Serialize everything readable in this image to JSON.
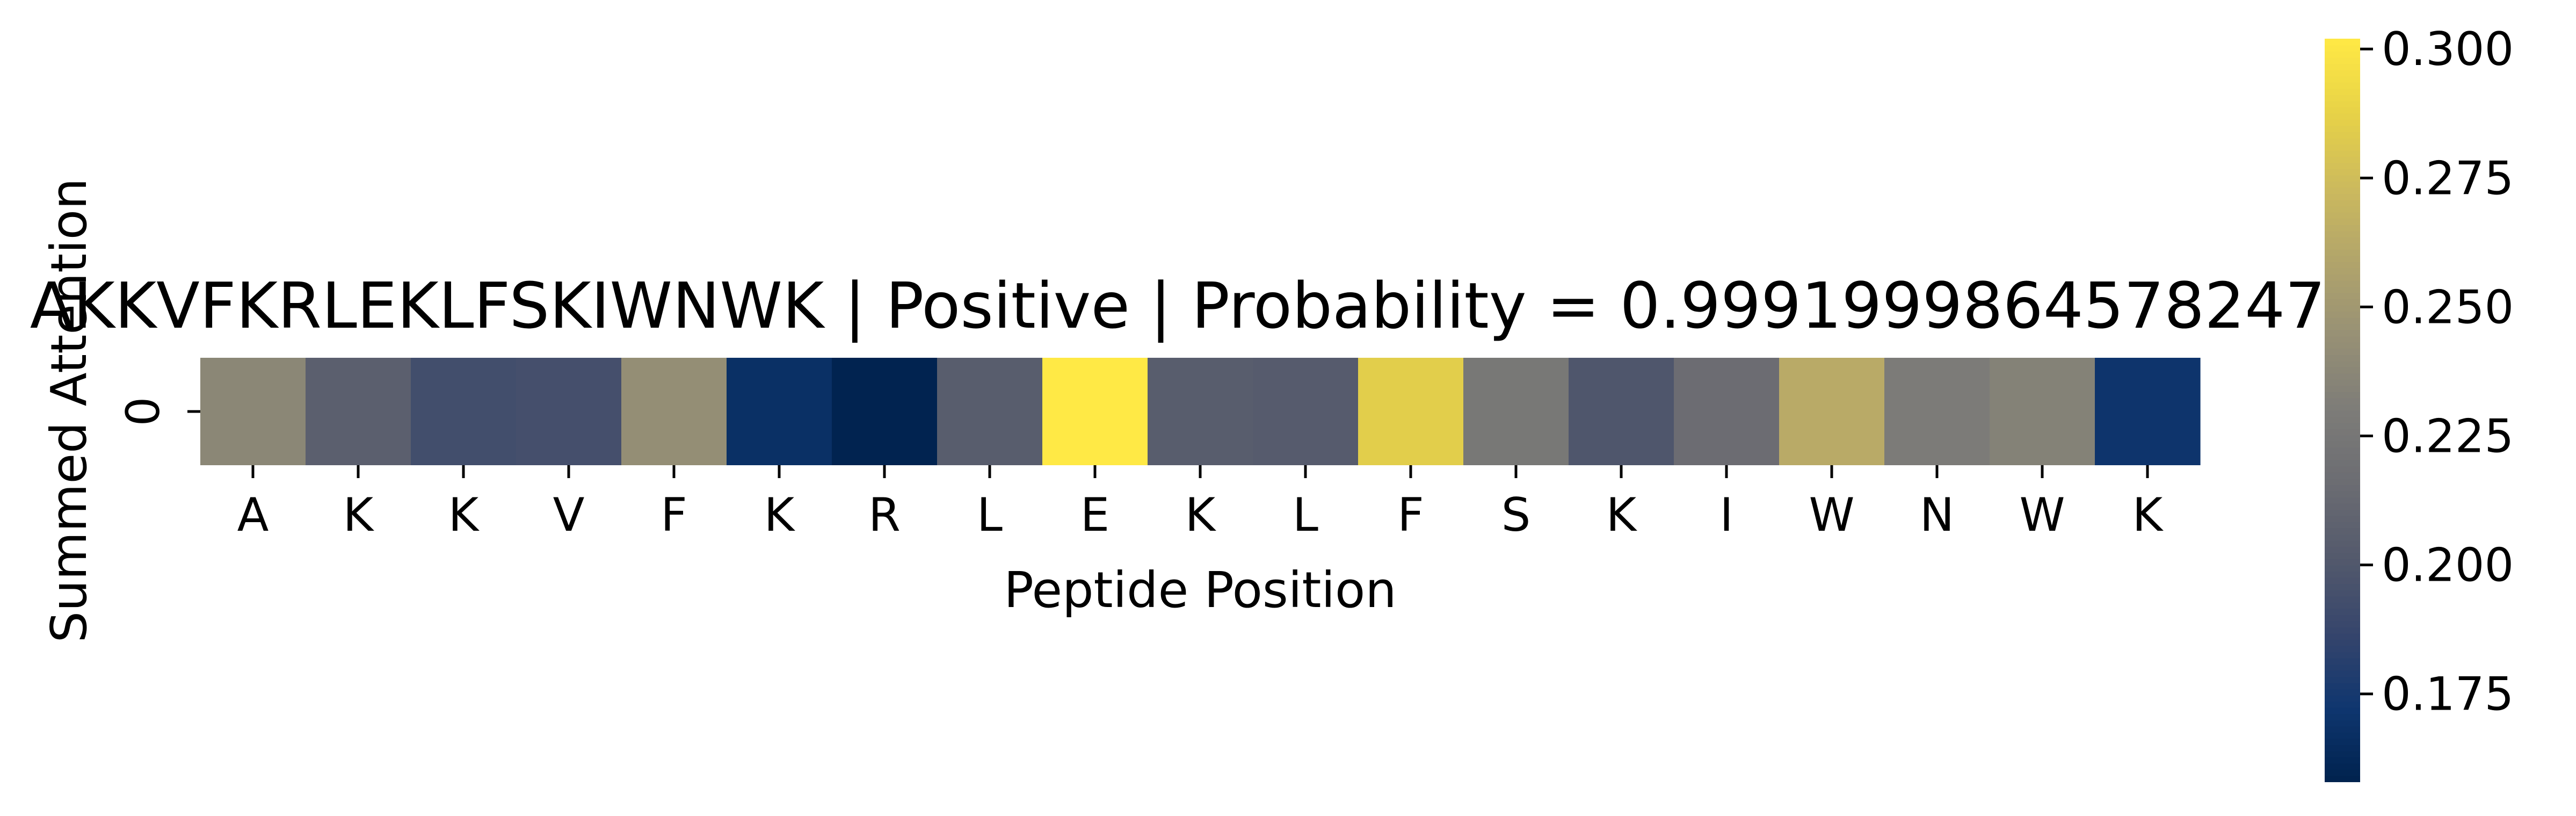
{
  "chart_data": {
    "type": "heatmap",
    "title": "AKKVFKRLEKLFSKIWNWK | Positive | Probability = 0.9991999864578247",
    "xlabel": "Peptide Position",
    "ylabel": "Summed Attention",
    "y_categories": [
      "0"
    ],
    "x_categories": [
      "A",
      "K",
      "K",
      "V",
      "F",
      "K",
      "R",
      "L",
      "E",
      "K",
      "L",
      "F",
      "S",
      "K",
      "I",
      "W",
      "N",
      "W",
      "K"
    ],
    "values": [
      [
        0.238,
        0.206,
        0.193,
        0.194,
        0.243,
        0.168,
        0.159,
        0.204,
        0.302,
        0.204,
        0.203,
        0.285,
        0.226,
        0.199,
        0.216,
        0.263,
        0.229,
        0.234,
        0.171
      ]
    ],
    "colormap": "cividis",
    "color_range": [
      0.158,
      0.302
    ],
    "colorbar_ticks": [
      "0.175",
      "0.200",
      "0.225",
      "0.250",
      "0.275",
      "0.300"
    ],
    "colorbar_tick_values": [
      0.175,
      0.2,
      0.225,
      0.25,
      0.275,
      0.3
    ]
  }
}
